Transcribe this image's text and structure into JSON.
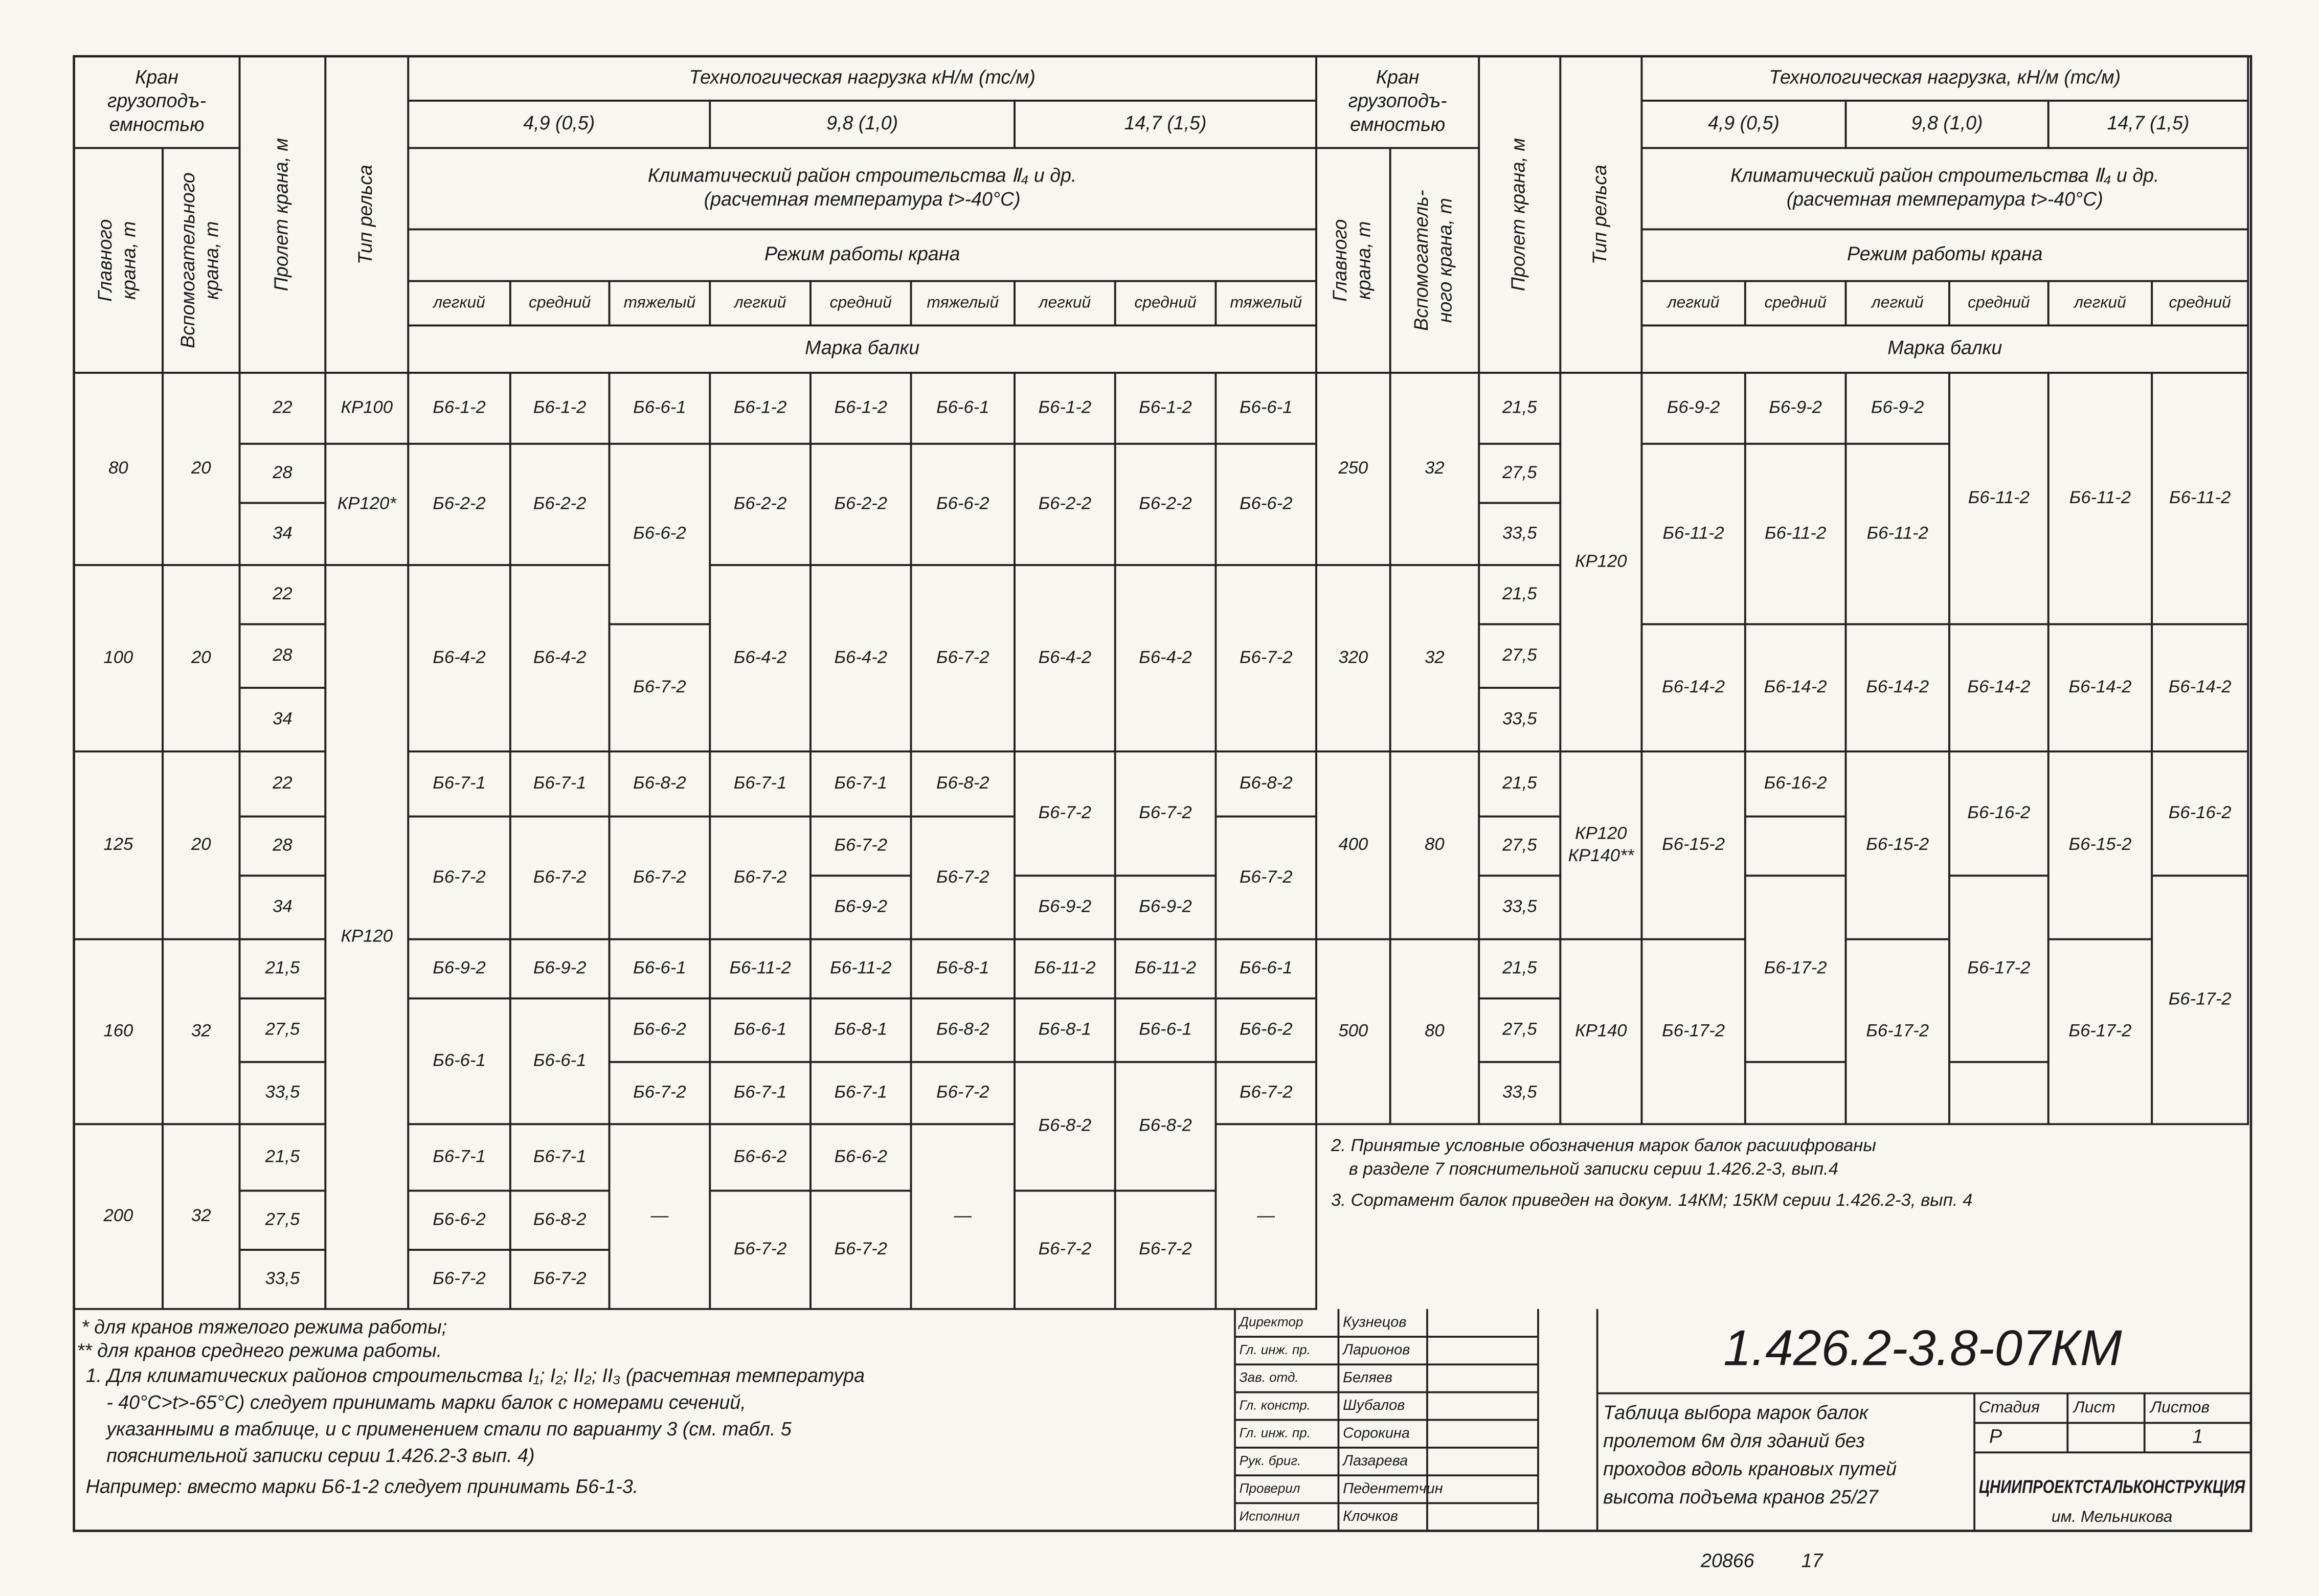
{
  "left_table": {
    "header": [
      [
        "Кран",
        "грузоподъ-",
        "емностью"
      ],
      [
        "Главного",
        "крана, т"
      ],
      [
        "Вспомогательного",
        "крана, т"
      ],
      "Пролет крана, м",
      "Тип рельса",
      "Технологическая нагрузка кН/м (тс/м)",
      "4,9 (0,5)",
      "9,8 (1,0)",
      "14,7 (1,5)",
      [
        "Климатический район строительства Ⅱ₄ и др.",
        "(расчетная температура t>-40°C)"
      ],
      "Режим работы крана",
      "легкий",
      "средний",
      "тяжелый",
      "легкий",
      "средний",
      "тяжелый",
      "легкий",
      "средний",
      "тяжелый",
      "Марка балки"
    ],
    "body": [
      "80",
      "20",
      "22",
      "28",
      "34",
      "КР100",
      "КР120*",
      "Б6-1-2",
      "Б6-2-2",
      "Б6-1-2",
      "Б6-2-2",
      "Б6-6-1",
      "Б6-6-2",
      "Б6-1-2",
      "Б6-2-2",
      "Б6-1-2",
      "Б6-2-2",
      "Б6-6-1",
      "Б6-6-2",
      "Б6-1-2",
      "Б6-2-2",
      "Б6-1-2",
      "Б6-2-2",
      "Б6-6-1",
      "Б6-6-2",
      "100",
      "20",
      "22",
      "28",
      "34",
      "КР120",
      "Б6-4-2",
      "Б6-4-2",
      "Б6-7-2",
      "Б6-4-2",
      "Б6-4-2",
      "Б6-7-2",
      "Б6-4-2",
      "Б6-4-2",
      "Б6-7-2",
      "125",
      "20",
      "22",
      "28",
      "34",
      "Б6-7-1",
      "Б6-7-2",
      "Б6-7-1",
      "Б6-7-2",
      "Б6-8-2",
      "Б6-7-2",
      "Б6-7-1",
      "Б6-7-2",
      "Б6-7-1",
      "Б6-7-2",
      "Б6-9-2",
      "Б6-8-2",
      "Б6-7-2",
      "Б6-7-2",
      "Б6-9-2",
      "Б6-7-2",
      "Б6-9-2",
      "Б6-8-2",
      "Б6-7-2",
      "160",
      "32",
      "21,5",
      "27,5",
      "33,5",
      "Б6-9-2",
      "Б6-6-1",
      "Б6-9-2",
      "Б6-6-1",
      "Б6-6-1",
      "Б6-6-2",
      "Б6-7-2",
      "Б6-11-2",
      "Б6-6-1",
      "Б6-7-1",
      "Б6-11-2",
      "Б6-8-1",
      "Б6-7-1",
      "Б6-8-1",
      "Б6-8-2",
      "Б6-7-2",
      "Б6-11-2",
      "Б6-8-1",
      "Б6-8-2",
      "Б6-11-2",
      "Б6-6-1",
      "Б6-8-2",
      "Б6-6-1",
      "Б6-6-2",
      "Б6-7-2",
      "200",
      "32",
      "21,5",
      "27,5",
      "33,5",
      "Б6-7-1",
      "Б6-6-2",
      "Б6-7-2",
      "Б6-7-1",
      "Б6-8-2",
      "Б6-7-2",
      "—",
      "Б6-6-2",
      "Б6-7-2",
      "Б6-6-2",
      "Б6-7-2",
      "—",
      "Б6-7-2",
      "Б6-7-2",
      "—"
    ]
  },
  "right_table": {
    "header": [
      [
        "Кран",
        "грузоподъ-",
        "емностью"
      ],
      [
        "Главного",
        "крана, т"
      ],
      [
        "Вспомогатель-",
        "ного крана, т"
      ],
      "Пролет крана, м",
      "Тип рельса",
      "Технологическая нагрузка, кН/м (тс/м)",
      "4,9 (0,5)",
      "9,8 (1,0)",
      "14,7 (1,5)",
      [
        "Климатический район строительства Ⅱ₄ и др.",
        "(расчетная температура t>-40°C)"
      ],
      "Режим работы крана",
      "легкий",
      "средний",
      "легкий",
      "средний",
      "легкий",
      "средний",
      "Марка балки"
    ],
    "body": [
      "250",
      "32",
      "21,5",
      "27,5",
      "33,5",
      "КР120",
      "Б6-9-2",
      "Б6-11-2",
      "Б6-9-2",
      "Б6-11-2",
      "Б6-9-2",
      "Б6-11-2",
      "Б6-11-2",
      "Б6-11-2",
      "Б6-11-2",
      "320",
      "32",
      "21,5",
      "27,5",
      "33,5",
      "Б6-14-2",
      "Б6-14-2",
      "Б6-14-2",
      "Б6-14-2",
      "Б6-14-2",
      "Б6-14-2",
      "400",
      "80",
      "21,5",
      "27,5",
      "33,5",
      [
        "КР120",
        "КР140**"
      ],
      "Б6-15-2",
      "Б6-16-2",
      "Б6-15-2",
      "Б6-16-2",
      "Б6-15-2",
      "Б6-16-2",
      "500",
      "80",
      "21,5",
      "27,5",
      "33,5",
      "КР140",
      "Б6-17-2",
      "Б6-17-2",
      "Б6-17-2",
      "Б6-17-2",
      "Б6-17-2",
      "Б6-17-2"
    ],
    "notes": [
      "2. Принятые условные обозначения марок балок расшифрованы",
      "в разделе 7 пояснительной записки серии 1.426.2-3, вып.4",
      "3. Сортамент балок приведен на докум. 14КМ; 15КМ серии 1.426.2-3, вып. 4"
    ]
  },
  "notes": [
    "* для кранов тяжелого режима работы;",
    "** для кранов среднего режима работы.",
    "1. Для климатических районов строительства I₁; I₂; II₂; II₃ (расчетная температура",
    "- 40°C>t>-65°C) следует принимать марки балок с номерами сечений,",
    "указанными в таблице, и с применением стали по варианту 3 (см. табл. 5",
    "пояснительной записки серии 1.426.2-3 вып. 4)",
    "Например: вместо марки Б6-1-2 следует принимать Б6-1-3."
  ],
  "title_block": {
    "signatures": [
      [
        "Директор",
        "Кузнецов"
      ],
      [
        "Гл. инж. пр.",
        "Ларионов"
      ],
      [
        "Зав. отд.",
        "Беляев"
      ],
      [
        "Гл. констр.",
        "Шубалов"
      ],
      [
        "Гл. инж. пр.",
        "Сорокина"
      ],
      [
        "Рук. бриг.",
        "Лазарева"
      ],
      [
        "Проверил",
        "Педентетчин"
      ],
      [
        "Исполнил",
        "Клочков"
      ]
    ],
    "code": "1.426.2-3.8-07КМ",
    "description": [
      "Таблица выбора марок балок",
      "пролетом 6м для зданий без",
      "проходов вдоль крановых путей",
      "высота подъема кранов 25/27"
    ],
    "stage_headers": [
      "Стадия",
      "Лист",
      "Листов"
    ],
    "stage": "Р",
    "sheets": "1",
    "organization": [
      "ЦНИИПРОЕКТСТАЛЬКОНСТРУКЦИЯ",
      "им. Мельникова"
    ]
  },
  "footer": [
    "20866",
    "17"
  ]
}
